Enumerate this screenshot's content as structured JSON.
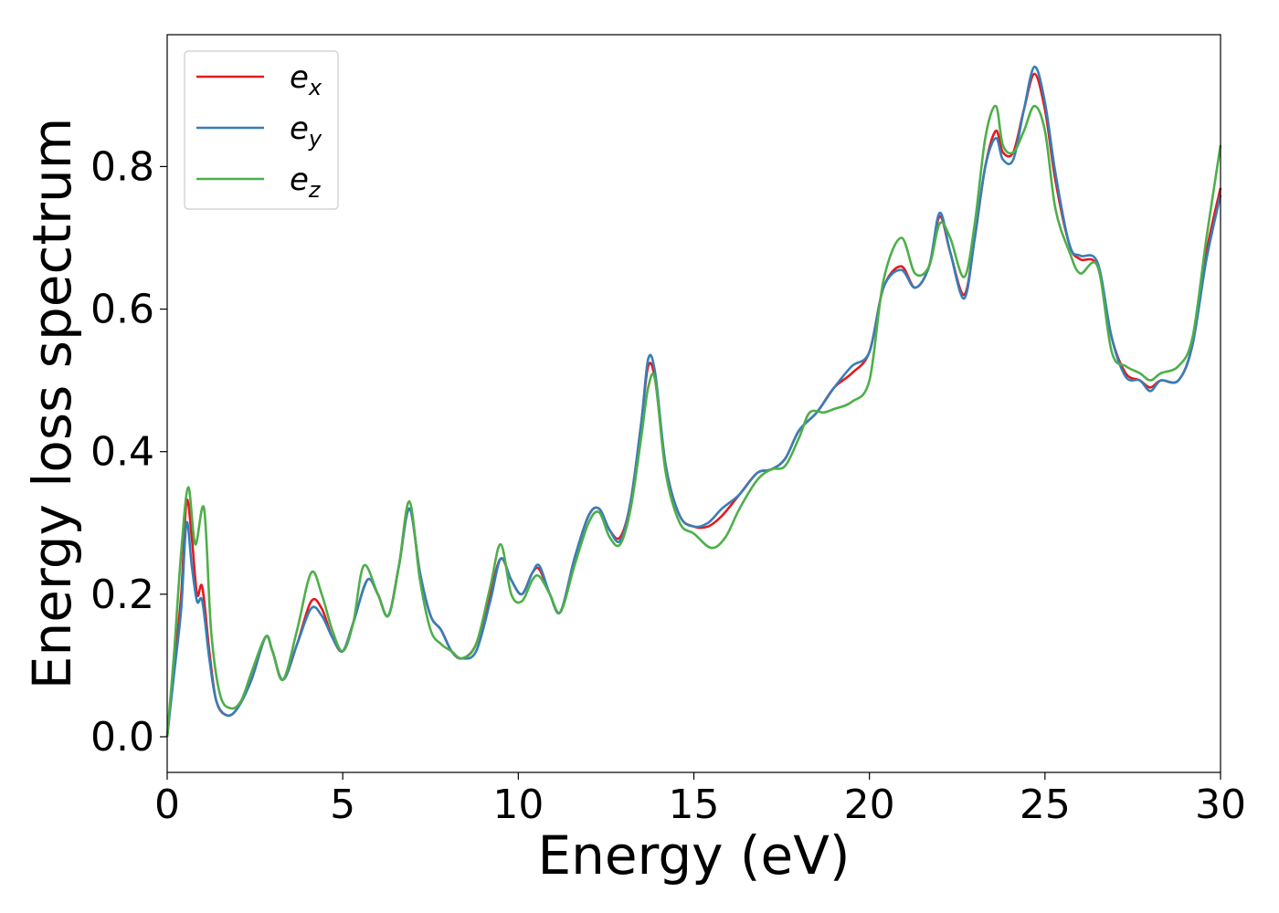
{
  "chart_data": {
    "type": "line",
    "xlabel": "Energy (eV)",
    "ylabel": "Energy loss spectrum",
    "xlim": [
      0,
      30
    ],
    "ylim": [
      -0.05,
      0.985
    ],
    "x_ticks": [
      0,
      5,
      10,
      15,
      20,
      25,
      30
    ],
    "y_ticks": [
      0.0,
      0.2,
      0.4,
      0.6,
      0.8
    ],
    "grid": false,
    "legend_position": "top-left",
    "legend": [
      {
        "base": "e",
        "sub": "x"
      },
      {
        "base": "e",
        "sub": "y"
      },
      {
        "base": "e",
        "sub": "z"
      }
    ],
    "series": [
      {
        "name": "e_x",
        "color": "#e41a1c",
        "x": [
          0,
          0.2,
          0.4,
          0.55,
          0.7,
          0.85,
          1.0,
          1.2,
          1.4,
          1.7,
          2.0,
          2.4,
          2.8,
          3.0,
          3.3,
          3.7,
          4.1,
          4.4,
          4.7,
          5.0,
          5.3,
          5.7,
          6.0,
          6.3,
          6.6,
          6.9,
          7.2,
          7.5,
          7.8,
          8.1,
          8.4,
          8.8,
          9.2,
          9.5,
          9.8,
          10.1,
          10.4,
          10.6,
          10.9,
          11.2,
          11.6,
          12.0,
          12.3,
          12.6,
          12.9,
          13.2,
          13.5,
          13.7,
          13.9,
          14.2,
          14.6,
          15.0,
          15.4,
          15.8,
          16.3,
          16.8,
          17.2,
          17.6,
          18.0,
          18.5,
          19.0,
          19.5,
          20.0,
          20.4,
          20.9,
          21.3,
          21.7,
          22.0,
          22.3,
          22.7,
          23.0,
          23.3,
          23.6,
          23.8,
          24.1,
          24.4,
          24.7,
          25.0,
          25.3,
          25.7,
          26.0,
          26.5,
          26.9,
          27.3,
          27.7,
          28.0,
          28.3,
          28.8,
          29.2,
          29.6,
          30.0
        ],
        "y": [
          0.0,
          0.1,
          0.2,
          0.33,
          0.28,
          0.2,
          0.21,
          0.12,
          0.05,
          0.03,
          0.04,
          0.08,
          0.14,
          0.12,
          0.08,
          0.13,
          0.19,
          0.18,
          0.14,
          0.12,
          0.16,
          0.22,
          0.2,
          0.17,
          0.24,
          0.32,
          0.23,
          0.17,
          0.15,
          0.12,
          0.11,
          0.13,
          0.2,
          0.25,
          0.22,
          0.2,
          0.23,
          0.235,
          0.2,
          0.175,
          0.25,
          0.31,
          0.32,
          0.29,
          0.28,
          0.33,
          0.44,
          0.52,
          0.5,
          0.38,
          0.31,
          0.295,
          0.295,
          0.31,
          0.34,
          0.37,
          0.375,
          0.39,
          0.43,
          0.455,
          0.49,
          0.51,
          0.54,
          0.63,
          0.66,
          0.63,
          0.66,
          0.73,
          0.68,
          0.62,
          0.7,
          0.8,
          0.85,
          0.82,
          0.82,
          0.88,
          0.93,
          0.88,
          0.78,
          0.69,
          0.67,
          0.66,
          0.56,
          0.51,
          0.5,
          0.49,
          0.5,
          0.5,
          0.55,
          0.68,
          0.77
        ]
      },
      {
        "name": "e_y",
        "color": "#377eb8",
        "x": [
          0,
          0.2,
          0.4,
          0.55,
          0.7,
          0.85,
          1.0,
          1.2,
          1.4,
          1.7,
          2.0,
          2.4,
          2.8,
          3.0,
          3.3,
          3.7,
          4.1,
          4.4,
          4.7,
          5.0,
          5.3,
          5.7,
          6.0,
          6.3,
          6.6,
          6.9,
          7.2,
          7.5,
          7.8,
          8.1,
          8.4,
          8.8,
          9.2,
          9.5,
          9.8,
          10.1,
          10.4,
          10.6,
          10.9,
          11.2,
          11.6,
          12.0,
          12.3,
          12.6,
          12.9,
          13.2,
          13.5,
          13.7,
          13.9,
          14.2,
          14.6,
          15.0,
          15.4,
          15.8,
          16.3,
          16.8,
          17.2,
          17.6,
          18.0,
          18.5,
          19.0,
          19.5,
          20.0,
          20.4,
          20.9,
          21.3,
          21.7,
          22.0,
          22.3,
          22.7,
          23.0,
          23.3,
          23.6,
          23.8,
          24.1,
          24.4,
          24.7,
          25.0,
          25.3,
          25.7,
          26.0,
          26.5,
          26.9,
          27.3,
          27.7,
          28.0,
          28.3,
          28.8,
          29.2,
          29.6,
          30.0
        ],
        "y": [
          0.0,
          0.09,
          0.18,
          0.3,
          0.24,
          0.19,
          0.19,
          0.11,
          0.05,
          0.03,
          0.04,
          0.08,
          0.14,
          0.12,
          0.08,
          0.13,
          0.18,
          0.17,
          0.14,
          0.12,
          0.16,
          0.22,
          0.2,
          0.17,
          0.24,
          0.32,
          0.23,
          0.17,
          0.15,
          0.12,
          0.11,
          0.12,
          0.19,
          0.25,
          0.22,
          0.2,
          0.23,
          0.24,
          0.2,
          0.175,
          0.25,
          0.31,
          0.32,
          0.29,
          0.275,
          0.33,
          0.44,
          0.53,
          0.51,
          0.38,
          0.31,
          0.295,
          0.3,
          0.32,
          0.34,
          0.37,
          0.375,
          0.39,
          0.43,
          0.455,
          0.49,
          0.52,
          0.54,
          0.63,
          0.655,
          0.63,
          0.66,
          0.735,
          0.68,
          0.615,
          0.7,
          0.8,
          0.84,
          0.81,
          0.81,
          0.88,
          0.94,
          0.89,
          0.79,
          0.69,
          0.675,
          0.665,
          0.56,
          0.505,
          0.5,
          0.485,
          0.5,
          0.5,
          0.55,
          0.67,
          0.76
        ]
      },
      {
        "name": "e_z",
        "color": "#4daf4a",
        "x": [
          0,
          0.2,
          0.4,
          0.6,
          0.8,
          1.05,
          1.25,
          1.5,
          1.8,
          2.1,
          2.4,
          2.8,
          3.0,
          3.3,
          3.7,
          4.1,
          4.4,
          4.7,
          5.0,
          5.3,
          5.6,
          6.0,
          6.3,
          6.6,
          6.9,
          7.2,
          7.5,
          7.8,
          8.1,
          8.4,
          8.8,
          9.2,
          9.5,
          9.8,
          10.1,
          10.4,
          10.6,
          10.9,
          11.2,
          11.6,
          12.0,
          12.3,
          12.6,
          12.9,
          13.2,
          13.5,
          13.7,
          13.9,
          14.2,
          14.6,
          15.0,
          15.5,
          15.9,
          16.3,
          16.8,
          17.2,
          17.6,
          18.0,
          18.3,
          18.7,
          19.0,
          19.5,
          20.0,
          20.4,
          20.9,
          21.3,
          21.7,
          22.0,
          22.3,
          22.7,
          23.0,
          23.3,
          23.6,
          23.8,
          24.1,
          24.4,
          24.7,
          25.0,
          25.3,
          25.7,
          26.0,
          26.5,
          26.9,
          27.3,
          27.7,
          28.0,
          28.3,
          28.8,
          29.2,
          29.6,
          30.0
        ],
        "y": [
          0.0,
          0.12,
          0.26,
          0.35,
          0.27,
          0.32,
          0.15,
          0.06,
          0.04,
          0.05,
          0.09,
          0.14,
          0.12,
          0.08,
          0.15,
          0.23,
          0.2,
          0.15,
          0.12,
          0.16,
          0.24,
          0.2,
          0.17,
          0.24,
          0.33,
          0.22,
          0.15,
          0.13,
          0.12,
          0.11,
          0.13,
          0.21,
          0.27,
          0.2,
          0.19,
          0.22,
          0.225,
          0.2,
          0.175,
          0.24,
          0.3,
          0.315,
          0.28,
          0.27,
          0.32,
          0.42,
          0.49,
          0.5,
          0.37,
          0.3,
          0.285,
          0.265,
          0.28,
          0.32,
          0.36,
          0.375,
          0.38,
          0.42,
          0.455,
          0.455,
          0.46,
          0.47,
          0.5,
          0.64,
          0.7,
          0.65,
          0.66,
          0.72,
          0.7,
          0.645,
          0.72,
          0.84,
          0.885,
          0.83,
          0.82,
          0.85,
          0.885,
          0.85,
          0.74,
          0.68,
          0.65,
          0.66,
          0.54,
          0.52,
          0.51,
          0.5,
          0.51,
          0.52,
          0.56,
          0.7,
          0.83
        ]
      }
    ]
  }
}
